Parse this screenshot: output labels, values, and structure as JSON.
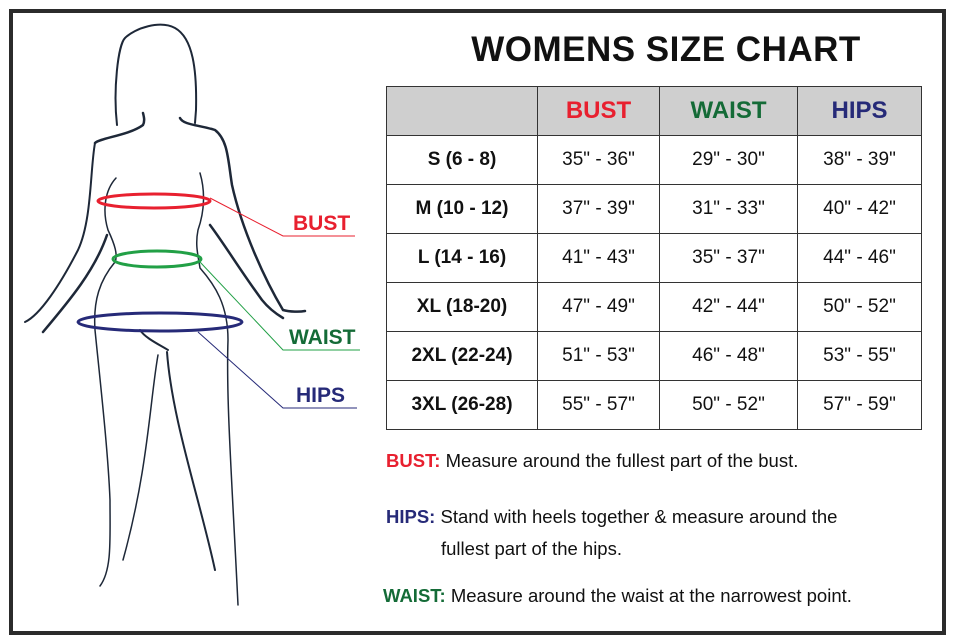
{
  "colors": {
    "bust": "#e8202f",
    "waist": "#146b37",
    "hips": "#262a78",
    "outline": "#1e2838",
    "header_bg": "#cfcfcf"
  },
  "figure": {
    "labels": {
      "bust": "BUST",
      "waist": "WAIST",
      "hips": "HIPS"
    }
  },
  "title": "WOMENS SIZE CHART",
  "table": {
    "headers": [
      "",
      "BUST",
      "WAIST",
      "HIPS"
    ],
    "rows": [
      {
        "size": "S (6 - 8)",
        "bust": "35\" - 36\"",
        "waist": "29\" - 30\"",
        "hips": "38\" - 39\""
      },
      {
        "size": "M (10 - 12)",
        "bust": "37\" - 39\"",
        "waist": "31\" - 33\"",
        "hips": "40\" - 42\""
      },
      {
        "size": "L (14 - 16)",
        "bust": "41\" - 43\"",
        "waist": "35\" - 37\"",
        "hips": "44\" - 46\""
      },
      {
        "size": "XL (18-20)",
        "bust": "47\" - 49\"",
        "waist": "42\" - 44\"",
        "hips": "50\" - 52\""
      },
      {
        "size": "2XL (22-24)",
        "bust": "51\" - 53\"",
        "waist": "46\" - 48\"",
        "hips": "53\" - 55\""
      },
      {
        "size": "3XL (26-28)",
        "bust": "55\" - 57\"",
        "waist": "50\" - 52\"",
        "hips": "57\" - 59\""
      }
    ]
  },
  "instructions": {
    "bust": {
      "label": "BUST:",
      "text": "Measure around the fullest part of the bust."
    },
    "hips": {
      "label": "HIPS:",
      "text": "Stand with heels together & measure around the",
      "text2": "fullest part of the hips."
    },
    "waist": {
      "label": "WAIST:",
      "text": "Measure around the waist at the narrowest point."
    }
  }
}
